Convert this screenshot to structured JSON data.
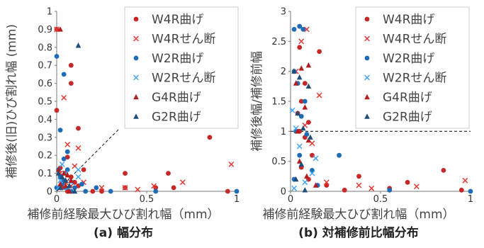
{
  "chart_data": [
    {
      "type": "scatter",
      "caption": "(a) 幅分布",
      "xlabel": "補修前経験最大ひび割れ幅（mm）",
      "ylabel": "補修後(旧)ひび割れ幅 (mm)",
      "xlim": [
        0,
        1
      ],
      "ylim": [
        0,
        1
      ],
      "xticks": [
        "0",
        "0.5",
        "1"
      ],
      "yticks": [
        "0",
        "0.1",
        "0.2",
        "0.3",
        "0.4",
        "0.5",
        "0.6",
        "0.7",
        "0.8",
        "0.9",
        "1"
      ],
      "grid": false,
      "legend_position": "upper-right",
      "reference_line": {
        "type": "y=x",
        "style": "dashed",
        "x_range": [
          0,
          0.35
        ]
      },
      "series": [
        {
          "name": "W4R曲げ",
          "marker": "circle",
          "color": "#c62828",
          "points": [
            [
              0.0,
              0.9
            ],
            [
              0.0,
              0.45
            ],
            [
              0.08,
              0.7
            ],
            [
              0.08,
              0.6
            ],
            [
              0.06,
              0.19
            ],
            [
              0.12,
              0.35
            ],
            [
              0.02,
              0.13
            ],
            [
              0.05,
              0.1
            ],
            [
              0.08,
              0.08
            ],
            [
              0.1,
              0.05
            ],
            [
              0.04,
              0.05
            ],
            [
              0.03,
              0.02
            ],
            [
              0.06,
              0.0
            ],
            [
              0.12,
              0.03
            ],
            [
              0.15,
              0.12
            ],
            [
              0.2,
              0.0
            ],
            [
              0.25,
              0.0
            ],
            [
              0.38,
              0.1
            ],
            [
              0.38,
              0.02
            ],
            [
              0.55,
              0.02
            ],
            [
              0.62,
              0.1
            ],
            [
              0.65,
              0.02
            ],
            [
              0.85,
              0.3
            ],
            [
              0.95,
              0.0
            ]
          ]
        },
        {
          "name": "W4Rせん断",
          "marker": "x",
          "color": "#e53935",
          "points": [
            [
              0.0,
              0.9
            ],
            [
              0.04,
              0.52
            ],
            [
              0.06,
              0.26
            ],
            [
              0.12,
              0.24
            ],
            [
              0.1,
              0.14
            ],
            [
              0.02,
              0.1
            ],
            [
              0.05,
              0.05
            ],
            [
              0.08,
              0.03
            ],
            [
              0.15,
              0.05
            ],
            [
              0.25,
              0.02
            ],
            [
              0.38,
              0.02
            ],
            [
              0.45,
              0.01
            ],
            [
              0.54,
              0.03
            ],
            [
              0.7,
              0.05
            ],
            [
              0.97,
              0.15
            ]
          ]
        },
        {
          "name": "W2R曲げ",
          "marker": "circle",
          "color": "#1e6bb8",
          "points": [
            [
              0.0,
              0.75
            ],
            [
              0.02,
              0.34
            ],
            [
              0.04,
              0.65
            ],
            [
              0.06,
              0.22
            ],
            [
              0.04,
              0.18
            ],
            [
              0.06,
              0.12
            ],
            [
              0.01,
              0.12
            ],
            [
              0.02,
              0.08
            ],
            [
              0.04,
              0.06
            ],
            [
              0.03,
              0.04
            ],
            [
              0.0,
              0.02
            ],
            [
              0.05,
              0.02
            ],
            [
              0.08,
              0.0
            ],
            [
              0.14,
              0.04
            ],
            [
              0.1,
              0.02
            ],
            [
              0.16,
              0.0
            ],
            [
              0.22,
              0.02
            ],
            [
              0.3,
              0.0
            ],
            [
              0.55,
              0.0
            ],
            [
              1.0,
              0.0
            ]
          ]
        },
        {
          "name": "W2Rせん断",
          "marker": "x",
          "color": "#42a5f5",
          "points": [
            [
              0.03,
              0.15
            ],
            [
              0.05,
              0.1
            ],
            [
              0.02,
              0.06
            ],
            [
              0.08,
              0.05
            ],
            [
              0.12,
              0.12
            ],
            [
              0.12,
              0.08
            ],
            [
              0.01,
              0.02
            ],
            [
              0.06,
              0.02
            ]
          ]
        },
        {
          "name": "G4R曲げ",
          "marker": "triangle",
          "color": "#b71c1c",
          "points": [
            [
              0.02,
              0.9
            ],
            [
              0.01,
              0.12
            ],
            [
              0.04,
              0.1
            ],
            [
              0.06,
              0.09
            ],
            [
              0.08,
              0.06
            ],
            [
              0.02,
              0.04
            ],
            [
              0.05,
              0.03
            ],
            [
              0.07,
              0.0
            ]
          ]
        },
        {
          "name": "G2R曲げ",
          "marker": "triangle",
          "color": "#1f4e79",
          "points": [
            [
              0.12,
              0.81
            ],
            [
              0.01,
              0.1
            ],
            [
              0.03,
              0.08
            ],
            [
              0.05,
              0.06
            ],
            [
              0.07,
              0.03
            ],
            [
              0.02,
              0.02
            ],
            [
              0.1,
              0.0
            ]
          ]
        }
      ]
    },
    {
      "type": "scatter",
      "caption": "(b) 対補修前比幅分布",
      "xlabel": "補修前経験最大ひび割れ幅（mm）",
      "ylabel": "補修後幅/補修前幅",
      "xlim": [
        0,
        1
      ],
      "ylim": [
        0,
        3
      ],
      "xticks": [
        "0",
        "0.5",
        "1"
      ],
      "yticks": [
        "0",
        "0.5",
        "1",
        "1.5",
        "2",
        "2.5",
        "3"
      ],
      "grid": false,
      "legend_position": "upper-right",
      "reference_line": {
        "type": "y=1",
        "style": "dashed",
        "x_range": [
          0,
          1
        ]
      },
      "series": [
        {
          "name": "W4R曲げ",
          "marker": "circle",
          "color": "#c62828",
          "points": [
            [
              0.05,
              2.4
            ],
            [
              0.16,
              2.33
            ],
            [
              0.08,
              1.8
            ],
            [
              0.06,
              1.5
            ],
            [
              0.04,
              1.3
            ],
            [
              0.1,
              1.15
            ],
            [
              0.05,
              1.0
            ],
            [
              0.08,
              0.9
            ],
            [
              0.12,
              0.6
            ],
            [
              0.06,
              0.4
            ],
            [
              0.1,
              0.2
            ],
            [
              0.2,
              0.1
            ],
            [
              0.38,
              0.25
            ],
            [
              0.55,
              0.05
            ],
            [
              0.65,
              0.15
            ],
            [
              0.85,
              0.35
            ],
            [
              0.95,
              0.02
            ],
            [
              0.3,
              0.02
            ]
          ]
        },
        {
          "name": "W4Rせん断",
          "marker": "x",
          "color": "#e53935",
          "points": [
            [
              0.06,
              2.5
            ],
            [
              0.09,
              2.7
            ],
            [
              0.03,
              2.0
            ],
            [
              0.16,
              1.6
            ],
            [
              0.08,
              1.1
            ],
            [
              0.12,
              0.8
            ],
            [
              0.2,
              0.15
            ],
            [
              0.38,
              0.1
            ],
            [
              0.45,
              0.05
            ],
            [
              0.7,
              0.08
            ],
            [
              0.97,
              0.18
            ]
          ]
        },
        {
          "name": "W2R曲げ",
          "marker": "circle",
          "color": "#1e6bb8",
          "points": [
            [
              0.02,
              2.7
            ],
            [
              0.05,
              2.75
            ],
            [
              0.07,
              2.7
            ],
            [
              0.02,
              2.0
            ],
            [
              0.04,
              1.8
            ],
            [
              0.08,
              1.5
            ],
            [
              0.06,
              1.25
            ],
            [
              0.03,
              1.0
            ],
            [
              0.09,
              0.95
            ],
            [
              0.27,
              0.6
            ],
            [
              0.05,
              0.6
            ],
            [
              0.12,
              0.35
            ],
            [
              0.02,
              0.2
            ],
            [
              0.15,
              0.1
            ],
            [
              0.55,
              0.02
            ],
            [
              1.0,
              0.0
            ]
          ]
        },
        {
          "name": "W2Rせん断",
          "marker": "x",
          "color": "#42a5f5",
          "points": [
            [
              0.01,
              1.35
            ],
            [
              0.03,
              1.05
            ],
            [
              0.05,
              0.75
            ],
            [
              0.14,
              0.55
            ],
            [
              0.12,
              0.3
            ],
            [
              0.08,
              0.15
            ],
            [
              0.02,
              0.05
            ]
          ]
        },
        {
          "name": "G4R曲げ",
          "marker": "triangle",
          "color": "#b71c1c",
          "points": [
            [
              0.06,
              2.05
            ],
            [
              0.1,
              2.1
            ],
            [
              0.03,
              1.8
            ],
            [
              0.08,
              1.4
            ],
            [
              0.04,
              1.0
            ],
            [
              0.1,
              0.85
            ],
            [
              0.05,
              0.5
            ],
            [
              0.09,
              0.25
            ],
            [
              0.14,
              0.1
            ]
          ]
        },
        {
          "name": "G2R曲げ",
          "marker": "triangle",
          "color": "#1f4e79",
          "points": [
            [
              0.02,
              2.0
            ],
            [
              0.05,
              1.9
            ],
            [
              0.1,
              1.75
            ],
            [
              0.04,
              1.3
            ],
            [
              0.07,
              1.05
            ],
            [
              0.11,
              0.9
            ],
            [
              0.06,
              0.45
            ],
            [
              0.03,
              0.2
            ],
            [
              0.08,
              0.02
            ]
          ]
        }
      ]
    }
  ]
}
